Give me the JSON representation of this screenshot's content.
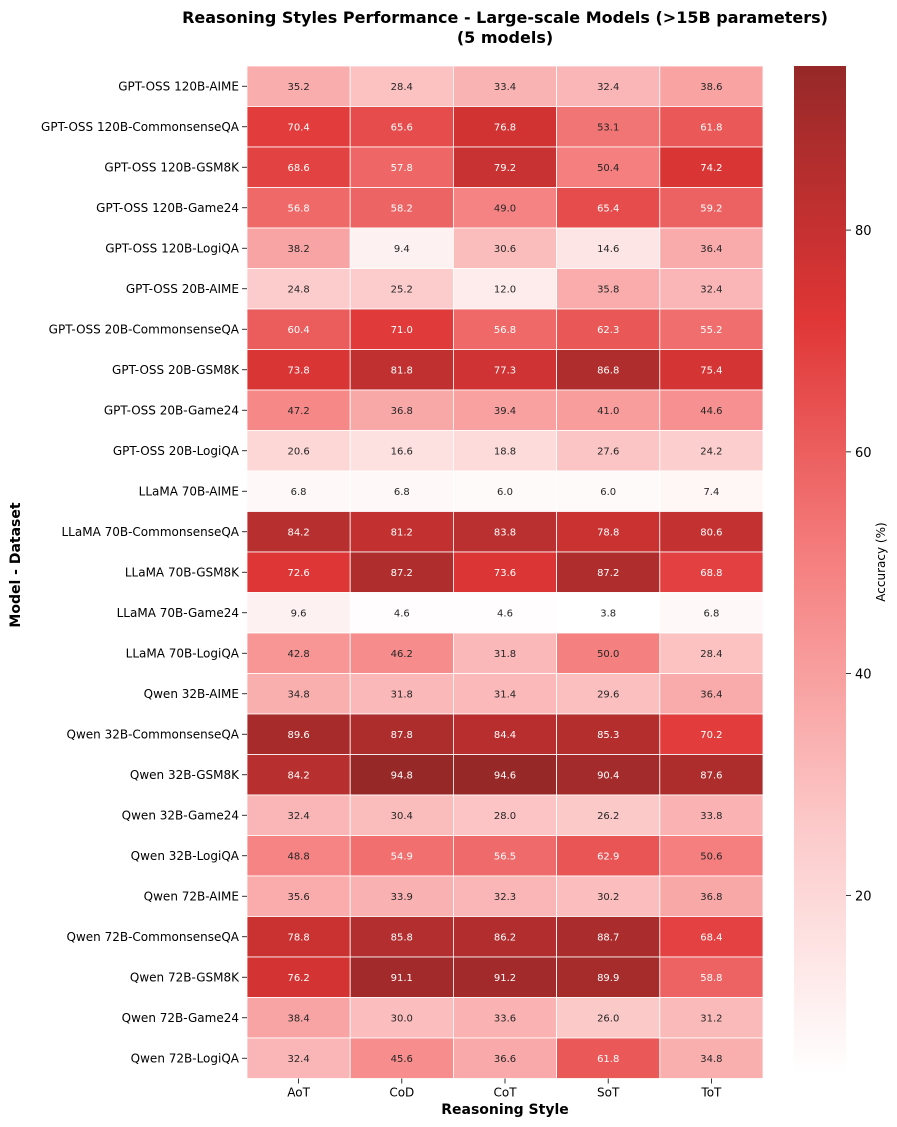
{
  "chart_data": {
    "type": "heatmap",
    "title": "Reasoning Styles Performance - Large-scale Models (>15B parameters)",
    "subtitle": "(5 models)",
    "xlabel": "Reasoning Style",
    "ylabel": "Model - Dataset",
    "colorbar_label": "Accuracy (%)",
    "colorbar_ticks": [
      20,
      40,
      60,
      80
    ],
    "value_range": [
      3.8,
      94.8
    ],
    "columns": [
      "AoT",
      "CoD",
      "CoT",
      "SoT",
      "ToT"
    ],
    "rows": [
      "GPT-OSS 120B-AIME",
      "GPT-OSS 120B-CommonsenseQA",
      "GPT-OSS 120B-GSM8K",
      "GPT-OSS 120B-Game24",
      "GPT-OSS 120B-LogiQA",
      "GPT-OSS 20B-AIME",
      "GPT-OSS 20B-CommonsenseQA",
      "GPT-OSS 20B-GSM8K",
      "GPT-OSS 20B-Game24",
      "GPT-OSS 20B-LogiQA",
      "LLaMA 70B-AIME",
      "LLaMA 70B-CommonsenseQA",
      "LLaMA 70B-GSM8K",
      "LLaMA 70B-Game24",
      "LLaMA 70B-LogiQA",
      "Qwen 32B-AIME",
      "Qwen 32B-CommonsenseQA",
      "Qwen 32B-GSM8K",
      "Qwen 32B-Game24",
      "Qwen 32B-LogiQA",
      "Qwen 72B-AIME",
      "Qwen 72B-CommonsenseQA",
      "Qwen 72B-GSM8K",
      "Qwen 72B-Game24",
      "Qwen 72B-LogiQA"
    ],
    "values": [
      [
        35.2,
        28.4,
        33.4,
        32.4,
        38.6
      ],
      [
        70.4,
        65.6,
        76.8,
        53.1,
        61.8
      ],
      [
        68.6,
        57.8,
        79.2,
        50.4,
        74.2
      ],
      [
        56.8,
        58.2,
        49.0,
        65.4,
        59.2
      ],
      [
        38.2,
        9.4,
        30.6,
        14.6,
        36.4
      ],
      [
        24.8,
        25.2,
        12.0,
        35.8,
        32.4
      ],
      [
        60.4,
        71.0,
        56.8,
        62.3,
        55.2
      ],
      [
        73.8,
        81.8,
        77.3,
        86.8,
        75.4
      ],
      [
        47.2,
        36.8,
        39.4,
        41.0,
        44.6
      ],
      [
        20.6,
        16.6,
        18.8,
        27.6,
        24.2
      ],
      [
        6.8,
        6.8,
        6.0,
        6.0,
        7.4
      ],
      [
        84.2,
        81.2,
        83.8,
        78.8,
        80.6
      ],
      [
        72.6,
        87.2,
        73.6,
        87.2,
        68.8
      ],
      [
        9.6,
        4.6,
        4.6,
        3.8,
        6.8
      ],
      [
        42.8,
        46.2,
        31.8,
        50.0,
        28.4
      ],
      [
        34.8,
        31.8,
        31.4,
        29.6,
        36.4
      ],
      [
        89.6,
        87.8,
        84.4,
        85.3,
        70.2
      ],
      [
        84.2,
        94.8,
        94.6,
        90.4,
        87.6
      ],
      [
        32.4,
        30.4,
        28.0,
        26.2,
        33.8
      ],
      [
        48.8,
        54.9,
        56.5,
        62.9,
        50.6
      ],
      [
        35.6,
        33.9,
        32.3,
        30.2,
        36.8
      ],
      [
        78.8,
        85.8,
        86.2,
        88.7,
        68.4
      ],
      [
        76.2,
        91.1,
        91.2,
        89.9,
        58.8
      ],
      [
        38.4,
        30.0,
        33.6,
        26.0,
        31.2
      ],
      [
        32.4,
        45.6,
        36.6,
        61.8,
        34.8
      ]
    ]
  }
}
